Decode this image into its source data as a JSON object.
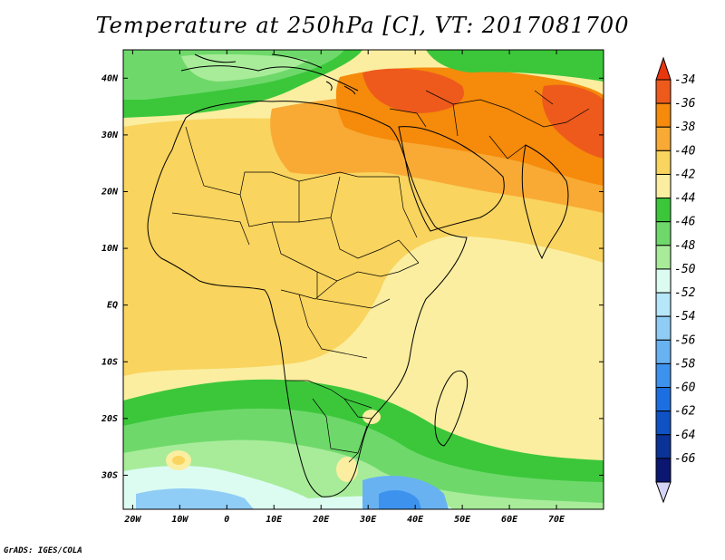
{
  "title": "Temperature at 250hPa [C], VT: 2017081700",
  "credit": "GrADS: IGES/COLA",
  "map": {
    "lon_range": [
      -22,
      80
    ],
    "lat_range": [
      -36,
      45
    ],
    "lon_ticks": [
      {
        "value": -20,
        "label": "20W"
      },
      {
        "value": -10,
        "label": "10W"
      },
      {
        "value": 0,
        "label": "0"
      },
      {
        "value": 10,
        "label": "10E"
      },
      {
        "value": 20,
        "label": "20E"
      },
      {
        "value": 30,
        "label": "30E"
      },
      {
        "value": 40,
        "label": "40E"
      },
      {
        "value": 50,
        "label": "50E"
      },
      {
        "value": 60,
        "label": "60E"
      },
      {
        "value": 70,
        "label": "70E"
      }
    ],
    "lat_ticks": [
      {
        "value": 40,
        "label": "40N"
      },
      {
        "value": 30,
        "label": "30N"
      },
      {
        "value": 20,
        "label": "20N"
      },
      {
        "value": 10,
        "label": "10N"
      },
      {
        "value": 0,
        "label": "EQ"
      },
      {
        "value": -10,
        "label": "10S"
      },
      {
        "value": -20,
        "label": "20S"
      },
      {
        "value": -30,
        "label": "30S"
      }
    ]
  },
  "colorbar": {
    "levels": [
      {
        "label": "-34",
        "color": "#ee5a1c"
      },
      {
        "label": "-36",
        "color": "#f58a0b"
      },
      {
        "label": "-38",
        "color": "#f8aa35"
      },
      {
        "label": "-40",
        "color": "#f9d45e"
      },
      {
        "label": "-42",
        "color": "#fbeea0"
      },
      {
        "label": "-44",
        "color": "#3cc73b"
      },
      {
        "label": "-46",
        "color": "#6ed96a"
      },
      {
        "label": "-48",
        "color": "#a8ec9a"
      },
      {
        "label": "-50",
        "color": "#dcfcf2"
      },
      {
        "label": "-52",
        "color": "#b6e6fa"
      },
      {
        "label": "-54",
        "color": "#90cdf6"
      },
      {
        "label": "-56",
        "color": "#68b2f2"
      },
      {
        "label": "-58",
        "color": "#3d92ee"
      },
      {
        "label": "-60",
        "color": "#1c6fe0"
      },
      {
        "label": "-62",
        "color": "#0f52c4"
      },
      {
        "label": "-64",
        "color": "#0b3296"
      },
      {
        "label": "-66",
        "color": "#0a1670"
      }
    ],
    "over_color": "#e8360e",
    "under_color": "#d6d4f6"
  }
}
